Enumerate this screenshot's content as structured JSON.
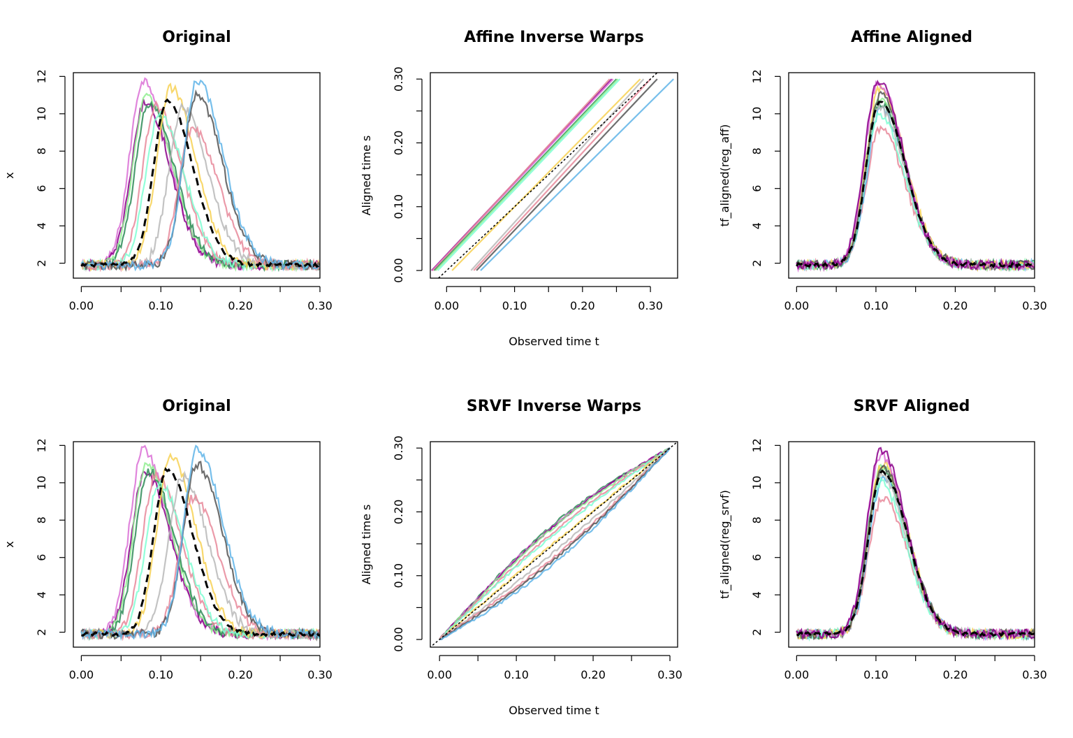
{
  "chart_data": [
    {
      "id": "p1",
      "type": "line",
      "title": "Original",
      "xlabel": "",
      "ylabel": "x",
      "xlim": [
        -0.01,
        0.3
      ],
      "ylim": [
        1.2,
        12.2
      ],
      "xticks": [
        0.0,
        0.05,
        0.1,
        0.15,
        0.2,
        0.25,
        0.3
      ],
      "xtick_labels": [
        "0.00",
        "0.10",
        "0.20",
        "0.30"
      ],
      "xtick_label_values": [
        0.0,
        0.1,
        0.2,
        0.3
      ],
      "yticks": [
        2,
        4,
        6,
        8,
        10,
        12
      ],
      "ytick_labels": [
        "2",
        "4",
        "6",
        "8",
        "10",
        "12"
      ],
      "series_kind": "peaks",
      "curves": [
        {
          "color": "#da70d6",
          "center": 0.078,
          "peak": 11.8
        },
        {
          "color": "#8b008b",
          "center": 0.08,
          "peak": 10.6
        },
        {
          "color": "#90ee90",
          "center": 0.082,
          "peak": 10.9
        },
        {
          "color": "#2e8b57",
          "center": 0.085,
          "peak": 10.6
        },
        {
          "color": "#e8889a",
          "center": 0.094,
          "peak": 10.4
        },
        {
          "color": "#7fffd4",
          "center": 0.098,
          "peak": 9.9
        },
        {
          "color": "#f7d154",
          "center": 0.112,
          "peak": 11.4
        },
        {
          "color": "#b8b8b8",
          "center": 0.127,
          "peak": 10.3
        },
        {
          "color": "#e8889a",
          "center": 0.14,
          "peak": 9.2
        },
        {
          "color": "#555555",
          "center": 0.145,
          "peak": 11.0
        },
        {
          "color": "#5fb4e8",
          "center": 0.146,
          "peak": 11.8
        }
      ],
      "mean": {
        "center": 0.108,
        "peak": 10.7
      }
    },
    {
      "id": "p2",
      "type": "line",
      "title": "Affine Inverse Warps",
      "xlabel": "Observed time t",
      "ylabel": "Aligned time s",
      "xlim": [
        -0.024,
        0.34
      ],
      "ylim": [
        -0.012,
        0.31
      ],
      "xticks": [
        0.0,
        0.05,
        0.1,
        0.15,
        0.2,
        0.25,
        0.3
      ],
      "xtick_labels": [
        "0.00",
        "0.10",
        "0.20",
        "0.30"
      ],
      "xtick_label_values": [
        0.0,
        0.1,
        0.2,
        0.3
      ],
      "yticks": [
        0.0,
        0.05,
        0.1,
        0.15,
        0.2,
        0.25,
        0.3
      ],
      "ytick_labels": [
        "0.00",
        "0.10",
        "0.20",
        "0.30"
      ],
      "ytick_label_values": [
        0.0,
        0.1,
        0.2,
        0.3
      ],
      "series_kind": "affine",
      "lines": [
        {
          "color": "#8b008b",
          "x0": -0.022,
          "x1": 0.243
        },
        {
          "color": "#da70d6",
          "x0": -0.021,
          "x1": 0.245
        },
        {
          "color": "#e8889a",
          "x0": -0.02,
          "x1": 0.24
        },
        {
          "color": "#2e8b57",
          "x0": -0.018,
          "x1": 0.25
        },
        {
          "color": "#90ee90",
          "x0": -0.016,
          "x1": 0.252
        },
        {
          "color": "#7fffd4",
          "x0": -0.013,
          "x1": 0.255
        },
        {
          "color": "#f7d154",
          "x0": 0.008,
          "x1": 0.285
        },
        {
          "color": "#b8b8b8",
          "x0": 0.036,
          "x1": 0.29
        },
        {
          "color": "#e8889a",
          "x0": 0.04,
          "x1": 0.3
        },
        {
          "color": "#555555",
          "x0": 0.044,
          "x1": 0.31
        },
        {
          "color": "#5fb4e8",
          "x0": 0.05,
          "x1": 0.334
        }
      ]
    },
    {
      "id": "p3",
      "type": "line",
      "title": "Affine Aligned",
      "xlabel": "",
      "ylabel": "tf_aligned(reg_aff)",
      "xlim": [
        -0.01,
        0.3
      ],
      "ylim": [
        1.2,
        12.2
      ],
      "xticks": [
        0.0,
        0.05,
        0.1,
        0.15,
        0.2,
        0.25,
        0.3
      ],
      "xtick_labels": [
        "0.00",
        "0.10",
        "0.20",
        "0.30"
      ],
      "xtick_label_values": [
        0.0,
        0.1,
        0.2,
        0.3
      ],
      "yticks": [
        2,
        4,
        6,
        8,
        10,
        12
      ],
      "ytick_labels": [
        "2",
        "4",
        "6",
        "8",
        "10",
        "12"
      ],
      "series_kind": "peaks",
      "curves": [
        {
          "color": "#e8889a",
          "center": 0.105,
          "peak": 9.2
        },
        {
          "color": "#5fb4e8",
          "center": 0.106,
          "peak": 10.2
        },
        {
          "color": "#2e8b57",
          "center": 0.105,
          "peak": 10.6
        },
        {
          "color": "#90ee90",
          "center": 0.104,
          "peak": 10.9
        },
        {
          "color": "#b8b8b8",
          "center": 0.104,
          "peak": 10.3
        },
        {
          "color": "#7fffd4",
          "center": 0.104,
          "peak": 10.0
        },
        {
          "color": "#f7d154",
          "center": 0.105,
          "peak": 11.4
        },
        {
          "color": "#555555",
          "center": 0.105,
          "peak": 11.0
        },
        {
          "color": "#da70d6",
          "center": 0.103,
          "peak": 11.7
        },
        {
          "color": "#8b008b",
          "center": 0.103,
          "peak": 11.8
        }
      ],
      "mean": {
        "center": 0.105,
        "peak": 10.7
      }
    },
    {
      "id": "p4",
      "type": "line",
      "title": "Original",
      "xlabel": "",
      "ylabel": "x",
      "xlim": [
        -0.01,
        0.3
      ],
      "ylim": [
        1.2,
        12.2
      ],
      "xticks": [
        0.0,
        0.05,
        0.1,
        0.15,
        0.2,
        0.25,
        0.3
      ],
      "xtick_labels": [
        "0.00",
        "0.10",
        "0.20",
        "0.30"
      ],
      "xtick_label_values": [
        0.0,
        0.1,
        0.2,
        0.3
      ],
      "yticks": [
        2,
        4,
        6,
        8,
        10,
        12
      ],
      "ytick_labels": [
        "2",
        "4",
        "6",
        "8",
        "10",
        "12"
      ],
      "series_kind": "peaks",
      "curves": [
        {
          "color": "#da70d6",
          "center": 0.078,
          "peak": 11.8
        },
        {
          "color": "#8b008b",
          "center": 0.08,
          "peak": 10.6
        },
        {
          "color": "#90ee90",
          "center": 0.082,
          "peak": 10.9
        },
        {
          "color": "#2e8b57",
          "center": 0.085,
          "peak": 10.6
        },
        {
          "color": "#e8889a",
          "center": 0.094,
          "peak": 10.4
        },
        {
          "color": "#7fffd4",
          "center": 0.098,
          "peak": 9.9
        },
        {
          "color": "#f7d154",
          "center": 0.112,
          "peak": 11.4
        },
        {
          "color": "#b8b8b8",
          "center": 0.127,
          "peak": 10.3
        },
        {
          "color": "#e8889a",
          "center": 0.14,
          "peak": 9.2
        },
        {
          "color": "#555555",
          "center": 0.145,
          "peak": 11.0
        },
        {
          "color": "#5fb4e8",
          "center": 0.146,
          "peak": 11.8
        }
      ],
      "mean": {
        "center": 0.108,
        "peak": 10.7
      }
    },
    {
      "id": "p5",
      "type": "line",
      "title": "SRVF Inverse Warps",
      "xlabel": "Observed time t",
      "ylabel": "Aligned time s",
      "xlim": [
        -0.012,
        0.31
      ],
      "ylim": [
        -0.012,
        0.31
      ],
      "xticks": [
        0.0,
        0.05,
        0.1,
        0.15,
        0.2,
        0.25,
        0.3
      ],
      "xtick_labels": [
        "0.00",
        "0.10",
        "0.20",
        "0.30"
      ],
      "xtick_label_values": [
        0.0,
        0.1,
        0.2,
        0.3
      ],
      "yticks": [
        0.0,
        0.05,
        0.1,
        0.15,
        0.2,
        0.25,
        0.3
      ],
      "ytick_labels": [
        "0.00",
        "0.10",
        "0.20",
        "0.30"
      ],
      "ytick_label_values": [
        0.0,
        0.1,
        0.2,
        0.3
      ],
      "series_kind": "srvf",
      "lines": [
        {
          "color": "#2e8b57",
          "bend": 0.032
        },
        {
          "color": "#da70d6",
          "bend": 0.03
        },
        {
          "color": "#8b008b",
          "bend": 0.029
        },
        {
          "color": "#90ee90",
          "bend": 0.027
        },
        {
          "color": "#e8889a",
          "bend": 0.02
        },
        {
          "color": "#7fffd4",
          "bend": 0.016
        },
        {
          "color": "#f7d154",
          "bend": 0.002
        },
        {
          "color": "#b8b8b8",
          "bend": -0.012
        },
        {
          "color": "#e8889a",
          "bend": -0.02
        },
        {
          "color": "#555555",
          "bend": -0.024
        },
        {
          "color": "#5fb4e8",
          "bend": -0.03
        }
      ]
    },
    {
      "id": "p6",
      "type": "line",
      "title": "SRVF Aligned",
      "xlabel": "",
      "ylabel": "tf_aligned(reg_srvf)",
      "xlim": [
        -0.01,
        0.3
      ],
      "ylim": [
        1.2,
        12.2
      ],
      "xticks": [
        0.0,
        0.05,
        0.1,
        0.15,
        0.2,
        0.25,
        0.3
      ],
      "xtick_labels": [
        "0.00",
        "0.10",
        "0.20",
        "0.30"
      ],
      "xtick_label_values": [
        0.0,
        0.1,
        0.2,
        0.3
      ],
      "yticks": [
        2,
        4,
        6,
        8,
        10,
        12
      ],
      "ytick_labels": [
        "2",
        "4",
        "6",
        "8",
        "10",
        "12"
      ],
      "series_kind": "peaks",
      "curves": [
        {
          "color": "#e8889a",
          "center": 0.108,
          "peak": 9.2
        },
        {
          "color": "#5fb4e8",
          "center": 0.109,
          "peak": 10.3
        },
        {
          "color": "#2e8b57",
          "center": 0.107,
          "peak": 10.7
        },
        {
          "color": "#90ee90",
          "center": 0.107,
          "peak": 10.9
        },
        {
          "color": "#b8b8b8",
          "center": 0.107,
          "peak": 10.4
        },
        {
          "color": "#7fffd4",
          "center": 0.106,
          "peak": 10.0
        },
        {
          "color": "#f7d154",
          "center": 0.108,
          "peak": 11.0
        },
        {
          "color": "#555555",
          "center": 0.108,
          "peak": 10.9
        },
        {
          "color": "#da70d6",
          "center": 0.106,
          "peak": 11.5
        },
        {
          "color": "#8b008b",
          "center": 0.106,
          "peak": 11.8
        }
      ],
      "mean": {
        "center": 0.108,
        "peak": 10.6
      }
    }
  ]
}
